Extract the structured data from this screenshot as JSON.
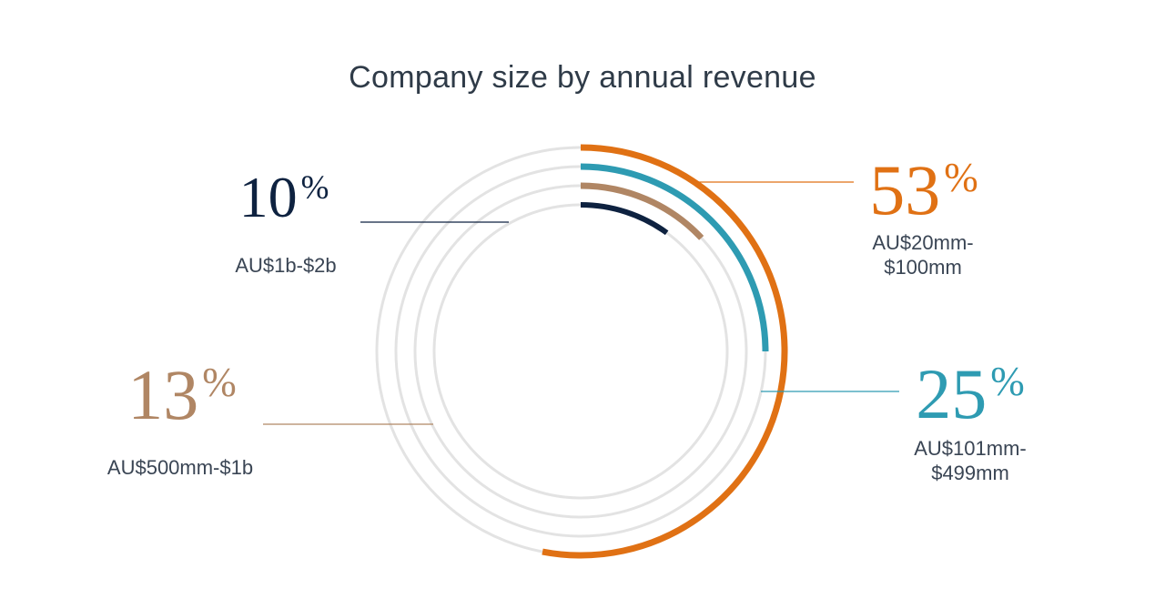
{
  "title": "Company size by annual revenue",
  "colors": {
    "track": "#e3e3e3",
    "orange": "#e07114",
    "teal": "#2e9bb2",
    "tan": "#b08664",
    "navy": "#0e2240"
  },
  "chart_data": {
    "type": "radial-bar",
    "title": "Company size by annual revenue",
    "unit": "%",
    "max": 100,
    "series": [
      {
        "name": "AU$20mm-$100mm",
        "value": 53,
        "label": "53",
        "sub1": "AU$20mm-",
        "sub2": "$100mm",
        "color": "#e07114"
      },
      {
        "name": "AU$101mm-$499mm",
        "value": 25,
        "label": "25",
        "sub1": "AU$101mm-",
        "sub2": "$499mm",
        "color": "#2e9bb2"
      },
      {
        "name": "AU$500mm-$1b",
        "value": 13,
        "label": "13",
        "sub1": "AU$500mm-$1b",
        "sub2": "",
        "color": "#b08664"
      },
      {
        "name": "AU$1b-$2b",
        "value": 10,
        "label": "10",
        "sub1": "AU$1b-$2b",
        "sub2": "",
        "color": "#0e2240"
      }
    ]
  }
}
